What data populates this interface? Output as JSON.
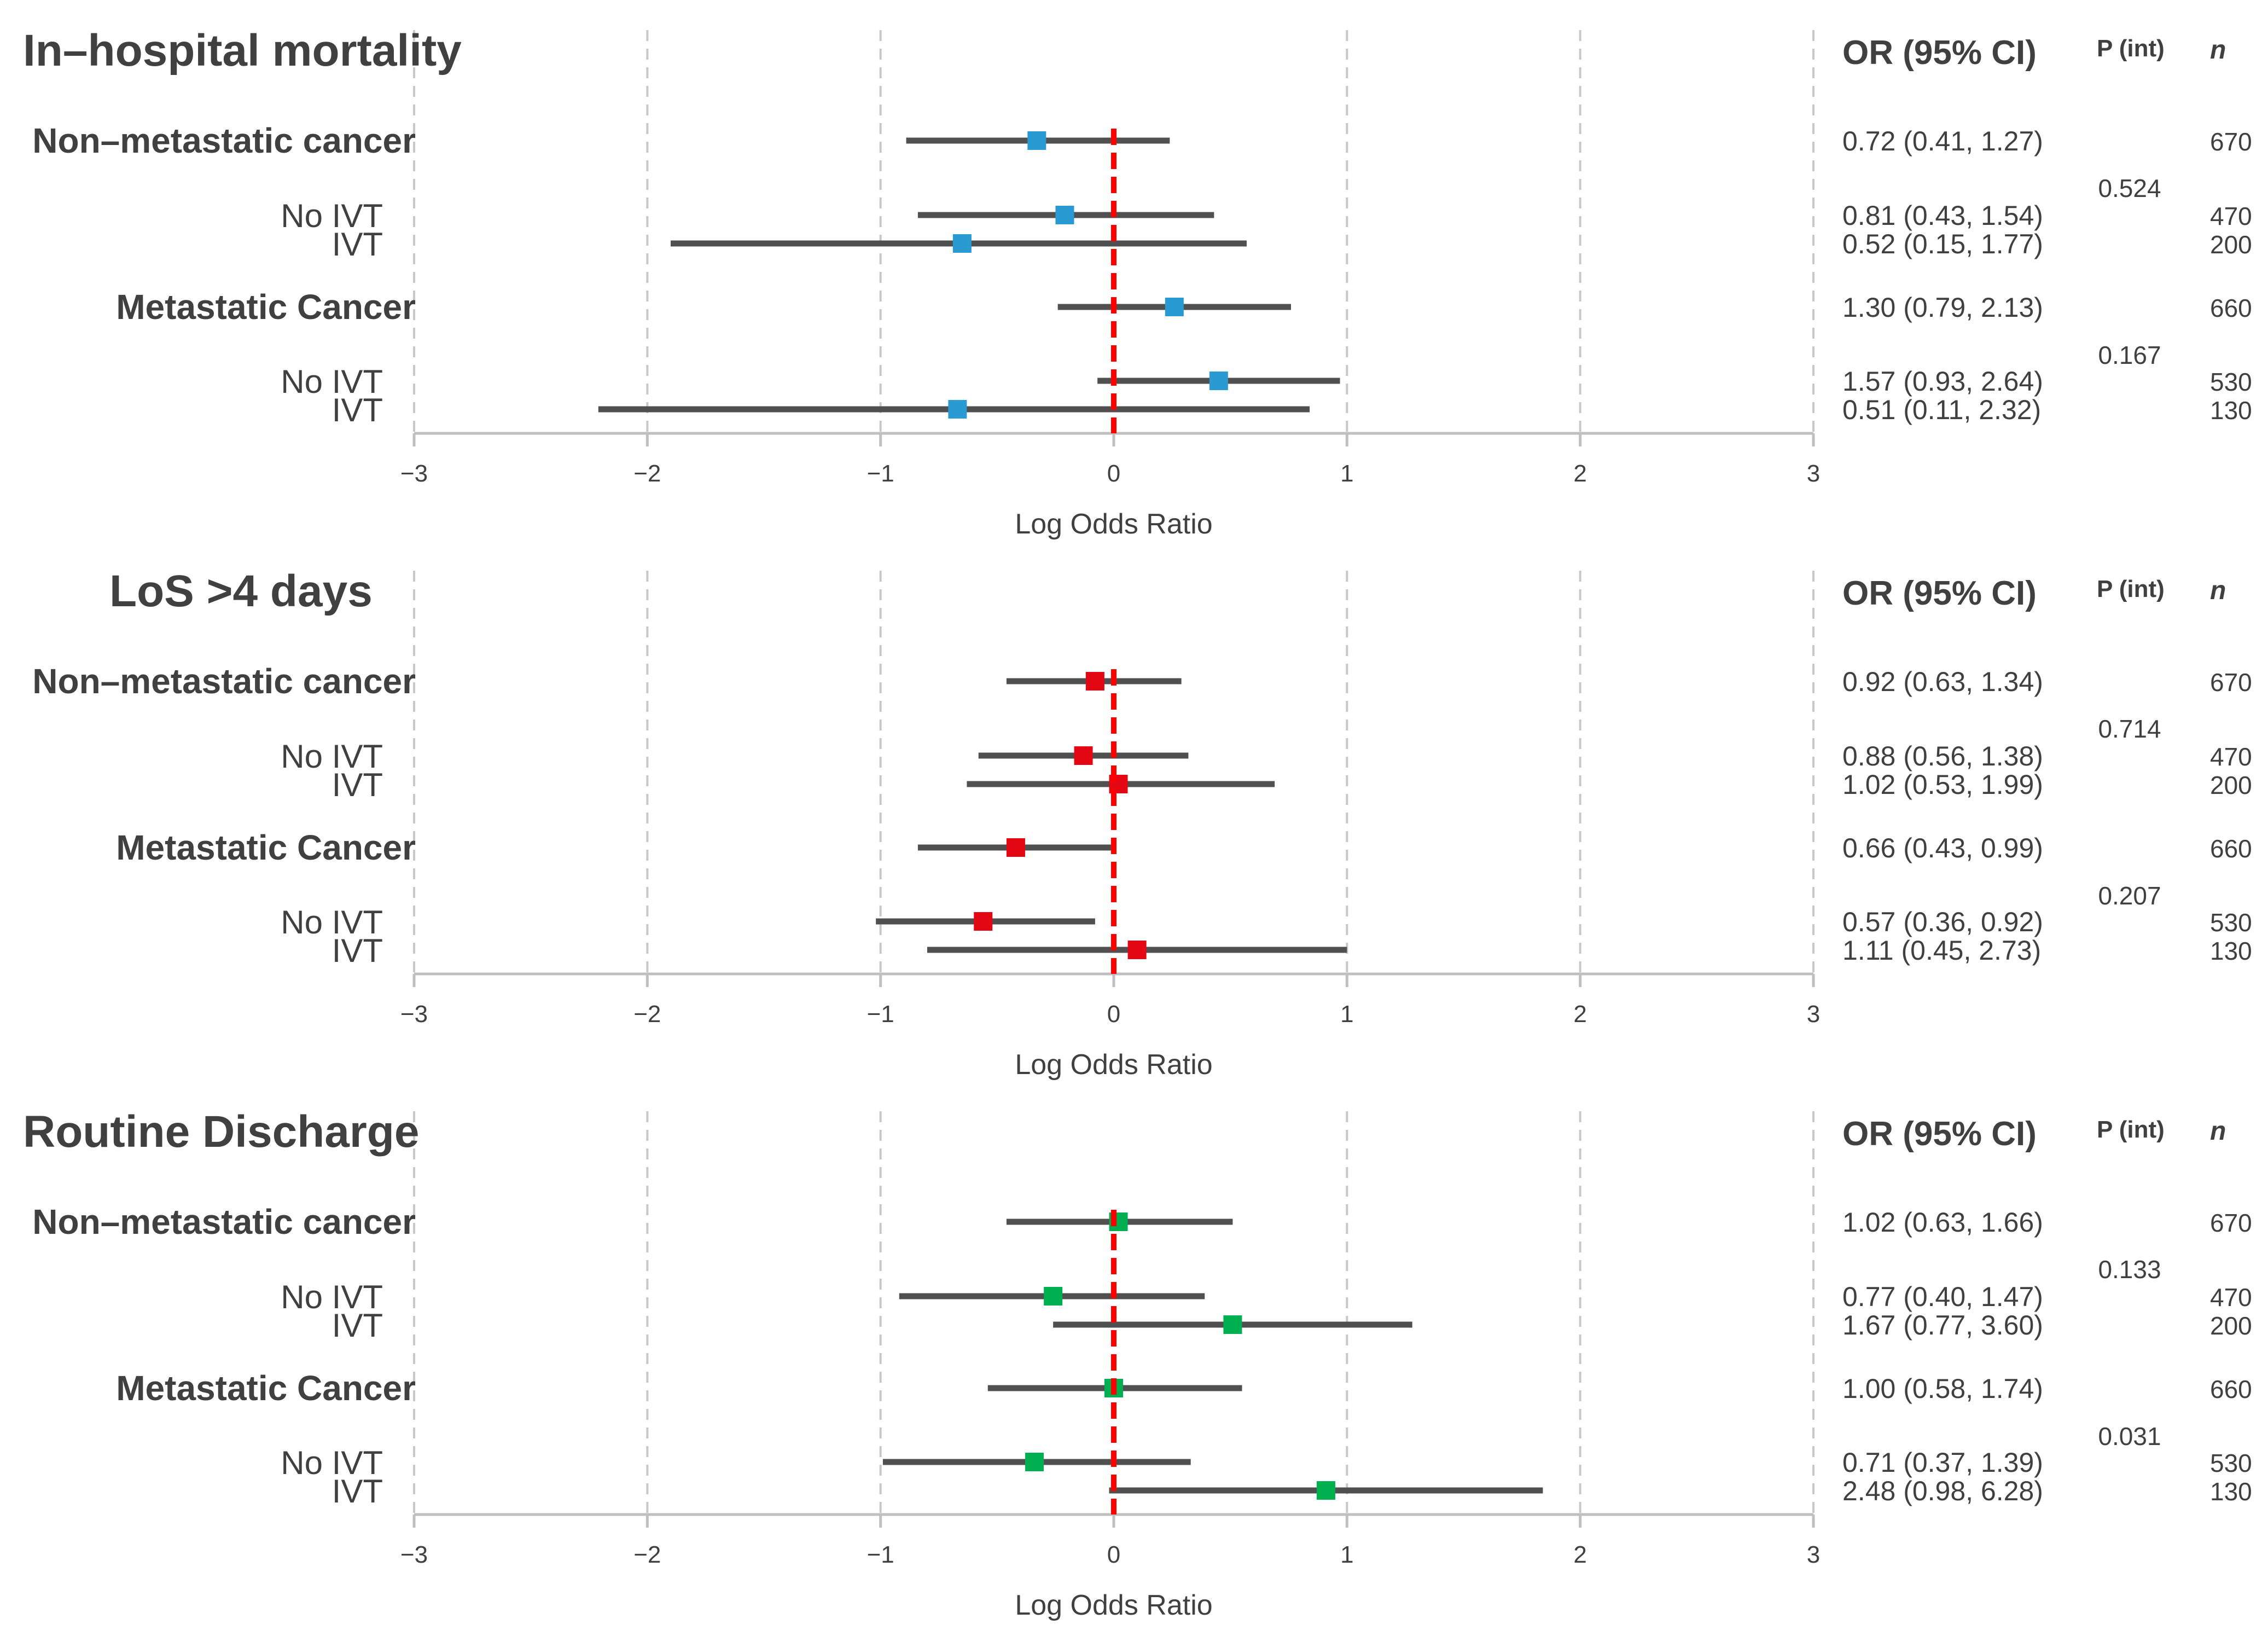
{
  "columns": {
    "or_header": "OR (95% CI)",
    "p_header": "P (int)",
    "n_header": "n"
  },
  "colors": {
    "panel_1": "#2a9ad3",
    "panel_2": "#e30613",
    "panel_3": "#00b050",
    "reference_line": "#ff0000",
    "ci_line": "#505050",
    "grid": "#c8c8c8",
    "axis": "#bfbfbf",
    "text": "#404040"
  },
  "chart_data": [
    {
      "type": "forest",
      "title": "In–hospital mortality",
      "xlabel": "Log Odds Ratio",
      "xlim": [
        -3,
        3
      ],
      "xticks": [
        "−3",
        "−2",
        "−1",
        "0",
        "1",
        "2",
        "3"
      ],
      "grid": true,
      "reference_line": 0,
      "rows": [
        {
          "label": "Non–metastatic cancer",
          "bold": true,
          "log_or": -0.33,
          "ci_low": -0.89,
          "ci_high": 0.24,
          "or_ci": "0.72 (0.41, 1.27)",
          "n": "670"
        },
        {
          "label": "No IVT",
          "bold": false,
          "log_or": -0.21,
          "ci_low": -0.84,
          "ci_high": 0.43,
          "or_ci": "0.81 (0.43, 1.54)",
          "n": "470"
        },
        {
          "label": "IVT",
          "bold": false,
          "log_or": -0.65,
          "ci_low": -1.9,
          "ci_high": 0.57,
          "or_ci": "0.52 (0.15, 1.77)",
          "n": "200"
        },
        {
          "label": "Metastatic Cancer",
          "bold": true,
          "log_or": 0.26,
          "ci_low": -0.24,
          "ci_high": 0.76,
          "or_ci": "1.30 (0.79, 2.13)",
          "n": "660"
        },
        {
          "label": "No IVT",
          "bold": false,
          "log_or": 0.45,
          "ci_low": -0.07,
          "ci_high": 0.97,
          "or_ci": "1.57 (0.93, 2.64)",
          "n": "530"
        },
        {
          "label": "IVT",
          "bold": false,
          "log_or": -0.67,
          "ci_low": -2.21,
          "ci_high": 0.84,
          "or_ci": "0.51 (0.11, 2.32)",
          "n": "130"
        }
      ],
      "p_int": [
        "0.524",
        "0.167"
      ]
    },
    {
      "type": "forest",
      "title": "LoS >4 days",
      "xlabel": "Log Odds Ratio",
      "xlim": [
        -3,
        3
      ],
      "xticks": [
        "−3",
        "−2",
        "−1",
        "0",
        "1",
        "2",
        "3"
      ],
      "grid": true,
      "reference_line": 0,
      "rows": [
        {
          "label": "Non–metastatic cancer",
          "bold": true,
          "log_or": -0.08,
          "ci_low": -0.46,
          "ci_high": 0.29,
          "or_ci": "0.92 (0.63, 1.34)",
          "n": "670"
        },
        {
          "label": "No IVT",
          "bold": false,
          "log_or": -0.13,
          "ci_low": -0.58,
          "ci_high": 0.32,
          "or_ci": "0.88 (0.56, 1.38)",
          "n": "470"
        },
        {
          "label": "IVT",
          "bold": false,
          "log_or": 0.02,
          "ci_low": -0.63,
          "ci_high": 0.69,
          "or_ci": "1.02 (0.53, 1.99)",
          "n": "200"
        },
        {
          "label": "Metastatic Cancer",
          "bold": true,
          "log_or": -0.42,
          "ci_low": -0.84,
          "ci_high": -0.01,
          "or_ci": "0.66 (0.43, 0.99)",
          "n": "660"
        },
        {
          "label": "No IVT",
          "bold": false,
          "log_or": -0.56,
          "ci_low": -1.02,
          "ci_high": -0.08,
          "or_ci": "0.57 (0.36, 0.92)",
          "n": "530"
        },
        {
          "label": "IVT",
          "bold": false,
          "log_or": 0.1,
          "ci_low": -0.8,
          "ci_high": 1.0,
          "or_ci": "1.11 (0.45, 2.73)",
          "n": "130"
        }
      ],
      "p_int": [
        "0.714",
        "0.207"
      ]
    },
    {
      "type": "forest",
      "title": "Routine Discharge",
      "xlabel": "Log Odds Ratio",
      "xlim": [
        -3,
        3
      ],
      "xticks": [
        "−3",
        "−2",
        "−1",
        "0",
        "1",
        "2",
        "3"
      ],
      "grid": true,
      "reference_line": 0,
      "rows": [
        {
          "label": "Non–metastatic cancer",
          "bold": true,
          "log_or": 0.02,
          "ci_low": -0.46,
          "ci_high": 0.51,
          "or_ci": "1.02 (0.63, 1.66)",
          "n": "670"
        },
        {
          "label": "No IVT",
          "bold": false,
          "log_or": -0.26,
          "ci_low": -0.92,
          "ci_high": 0.39,
          "or_ci": "0.77 (0.40, 1.47)",
          "n": "470"
        },
        {
          "label": "IVT",
          "bold": false,
          "log_or": 0.51,
          "ci_low": -0.26,
          "ci_high": 1.28,
          "or_ci": "1.67 (0.77, 3.60)",
          "n": "200"
        },
        {
          "label": "Metastatic Cancer",
          "bold": true,
          "log_or": 0.0,
          "ci_low": -0.54,
          "ci_high": 0.55,
          "or_ci": "1.00 (0.58, 1.74)",
          "n": "660"
        },
        {
          "label": "No IVT",
          "bold": false,
          "log_or": -0.34,
          "ci_low": -0.99,
          "ci_high": 0.33,
          "or_ci": "0.71 (0.37, 1.39)",
          "n": "530"
        },
        {
          "label": "IVT",
          "bold": false,
          "log_or": 0.91,
          "ci_low": -0.02,
          "ci_high": 1.84,
          "or_ci": "2.48 (0.98, 6.28)",
          "n": "130"
        }
      ],
      "p_int": [
        "0.133",
        "0.031"
      ]
    }
  ]
}
